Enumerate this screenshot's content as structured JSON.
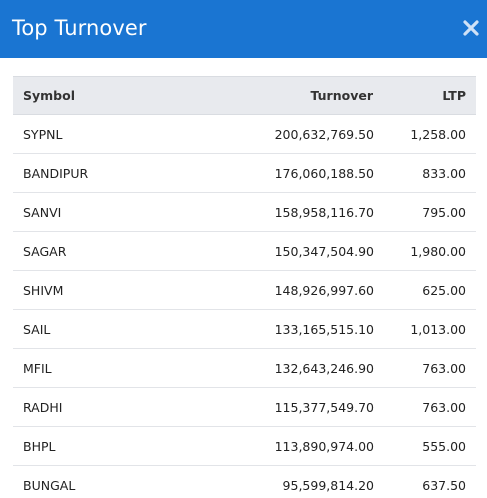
{
  "dialog": {
    "title": "Top Turnover",
    "close_icon": "close-icon"
  },
  "table": {
    "headers": {
      "symbol": "Symbol",
      "turnover": "Turnover",
      "ltp": "LTP"
    },
    "rows": [
      {
        "symbol": "SYPNL",
        "turnover": "200,632,769.50",
        "ltp": "1,258.00"
      },
      {
        "symbol": "BANDIPUR",
        "turnover": "176,060,188.50",
        "ltp": "833.00"
      },
      {
        "symbol": "SANVI",
        "turnover": "158,958,116.70",
        "ltp": "795.00"
      },
      {
        "symbol": "SAGAR",
        "turnover": "150,347,504.90",
        "ltp": "1,980.00"
      },
      {
        "symbol": "SHIVM",
        "turnover": "148,926,997.60",
        "ltp": "625.00"
      },
      {
        "symbol": "SAIL",
        "turnover": "133,165,515.10",
        "ltp": "1,013.00"
      },
      {
        "symbol": "MFIL",
        "turnover": "132,643,246.90",
        "ltp": "763.00"
      },
      {
        "symbol": "RADHI",
        "turnover": "115,377,549.70",
        "ltp": "763.00"
      },
      {
        "symbol": "BHPL",
        "turnover": "113,890,974.00",
        "ltp": "555.00"
      },
      {
        "symbol": "BUNGAL",
        "turnover": "95,599,814.20",
        "ltp": "637.50"
      }
    ]
  },
  "colors": {
    "header_bg": "#1a75d2",
    "table_header_bg": "#e8eaee",
    "text": "#222222"
  }
}
